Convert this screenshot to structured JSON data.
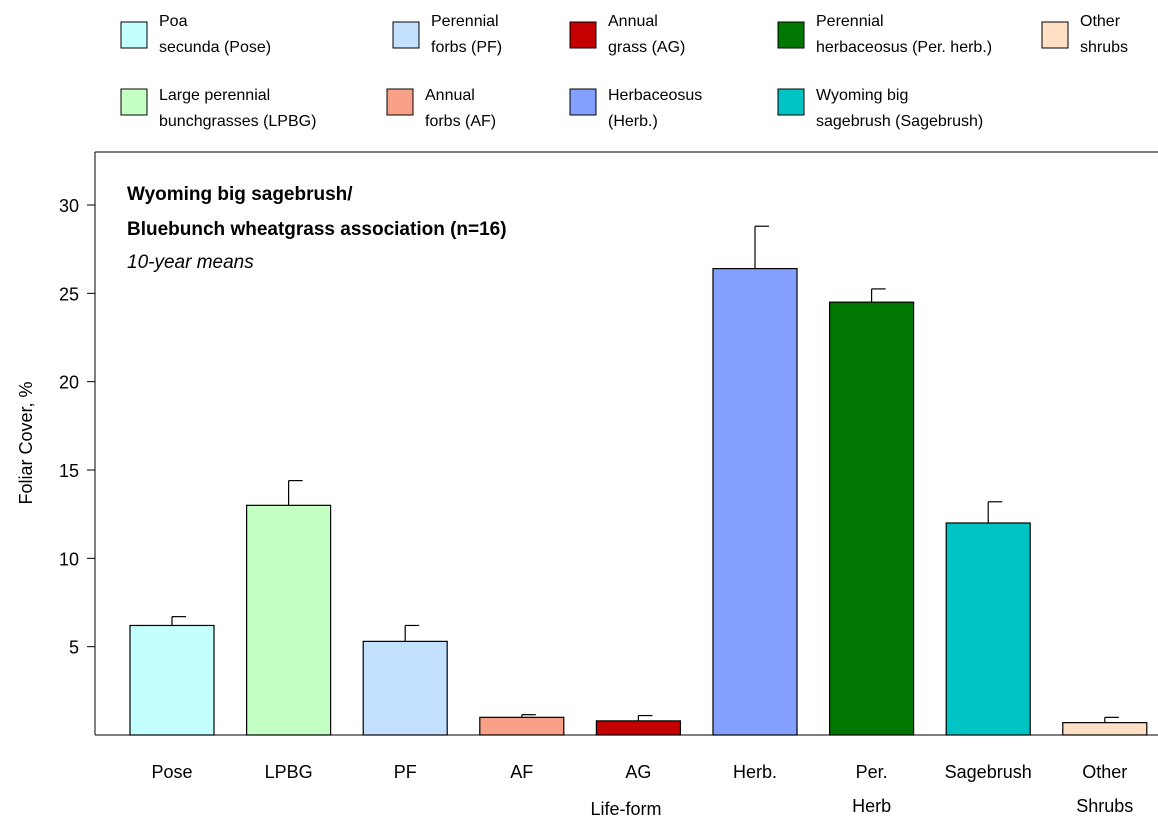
{
  "chart_data": {
    "type": "bar",
    "title_lines": [
      "Wyoming big sagebrush/",
      "Bluebunch wheatgrass association (n=16)"
    ],
    "subtitle": "10-year means",
    "xlabel": "Life-form",
    "ylabel": "Foliar Cover, %",
    "ylim": [
      0,
      33
    ],
    "yticks": [
      5,
      10,
      15,
      20,
      25,
      30
    ],
    "grid": false,
    "legend_position": "top",
    "categories": [
      [
        "Pose"
      ],
      [
        "LPBG"
      ],
      [
        "PF"
      ],
      [
        "AF"
      ],
      [
        "AG"
      ],
      [
        "Herb."
      ],
      [
        "Per.",
        "Herb"
      ],
      [
        "Sagebrush"
      ],
      [
        "Other",
        "Shrubs"
      ]
    ],
    "values": [
      6.2,
      13.0,
      5.3,
      1.0,
      0.8,
      26.4,
      24.5,
      12.0,
      0.7
    ],
    "errors": [
      0.5,
      1.4,
      0.9,
      0.15,
      0.3,
      2.4,
      0.75,
      1.2,
      0.3
    ],
    "colors": [
      "#c4ffff",
      "#c4ffc4",
      "#c4e0ff",
      "#f8a088",
      "#c40000",
      "#84a0ff",
      "#007800",
      "#00c4c4",
      "#ffe0c4"
    ],
    "legend": [
      {
        "lines": [
          "Poa",
          "secunda (Pose)"
        ],
        "color": "#c4ffff"
      },
      {
        "lines": [
          "Perennial",
          "forbs (PF)"
        ],
        "color": "#c4e0ff"
      },
      {
        "lines": [
          "Annual",
          "grass (AG)"
        ],
        "color": "#c40000"
      },
      {
        "lines": [
          "Perennial",
          "herbaceosus (Per. herb.)"
        ],
        "color": "#007800"
      },
      {
        "lines": [
          "Other",
          "shrubs"
        ],
        "color": "#ffe0c4"
      },
      {
        "lines": [
          "Large perennial",
          "bunchgrasses (LPBG)"
        ],
        "color": "#c4ffc4"
      },
      {
        "lines": [
          "Annual",
          "forbs (AF)"
        ],
        "color": "#f8a088"
      },
      {
        "lines": [
          "Herbaceosus",
          "(Herb.)"
        ],
        "color": "#84a0ff"
      },
      {
        "lines": [
          "Wyoming big",
          "sagebrush (Sagebrush)"
        ],
        "color": "#00c4c4"
      }
    ]
  }
}
